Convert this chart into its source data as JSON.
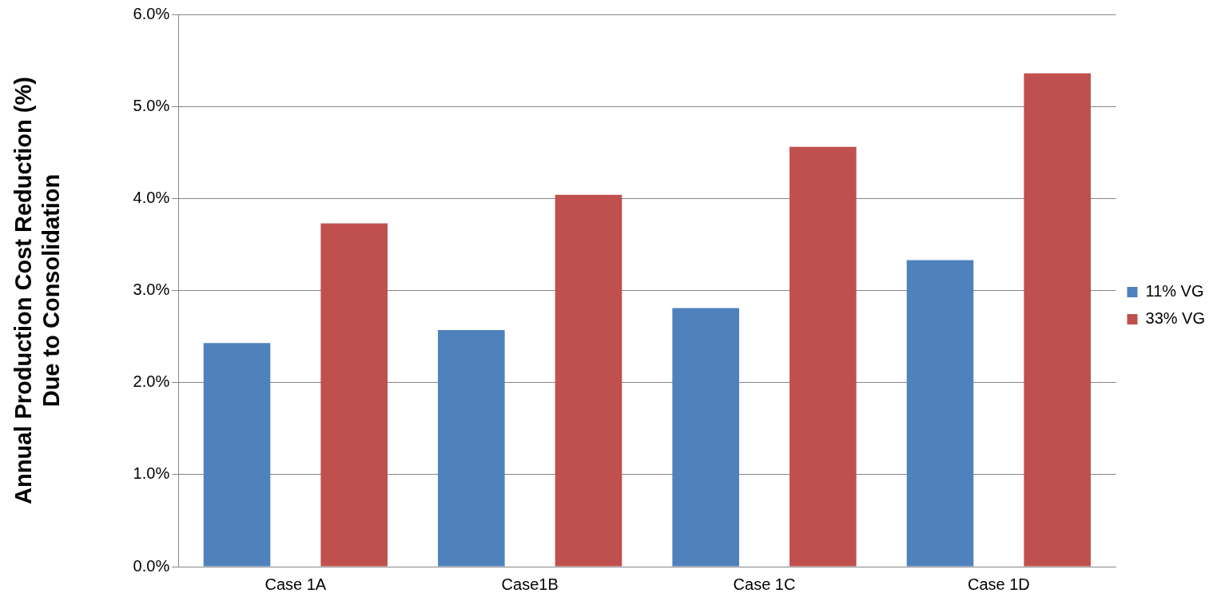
{
  "chart_data": {
    "type": "bar",
    "ylabel": "Annual Production Cost Reduction (%)\nDue to Consolidation",
    "categories": [
      "Case 1A",
      "Case1B",
      "Case 1C",
      "Case 1D"
    ],
    "series": [
      {
        "name": "11% VG",
        "color": "#4f81bd",
        "values": [
          2.43,
          2.57,
          2.81,
          3.33
        ]
      },
      {
        "name": "33% VG",
        "color": "#c0504d",
        "values": [
          3.73,
          4.04,
          4.56,
          5.36
        ]
      }
    ],
    "ylim": [
      0,
      6
    ],
    "yticks": [
      {
        "value": 0,
        "label": "0.0%"
      },
      {
        "value": 1,
        "label": "1.0%"
      },
      {
        "value": 2,
        "label": "2.0%"
      },
      {
        "value": 3,
        "label": "3.0%"
      },
      {
        "value": 4,
        "label": "4.0%"
      },
      {
        "value": 5,
        "label": "5.0%"
      },
      {
        "value": 6,
        "label": "6.0%"
      }
    ],
    "grid": "y",
    "legend": "right"
  }
}
